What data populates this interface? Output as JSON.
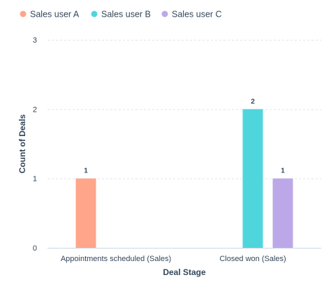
{
  "chart_data": {
    "type": "bar",
    "categories": [
      "Appointments scheduled (Sales)",
      "Closed won (Sales)"
    ],
    "series": [
      {
        "name": "Sales user A",
        "color": "#ffa58a",
        "values": [
          1,
          0
        ]
      },
      {
        "name": "Sales user B",
        "color": "#4fd6dc",
        "values": [
          0,
          2
        ]
      },
      {
        "name": "Sales user C",
        "color": "#bca8e8",
        "values": [
          0,
          1
        ]
      }
    ],
    "xlabel": "Deal Stage",
    "ylabel": "Count of Deals",
    "ylim": [
      0,
      3
    ],
    "yticks": [
      0,
      1,
      2,
      3
    ],
    "grid": true,
    "legend_position": "top-left",
    "data_labels": true
  }
}
